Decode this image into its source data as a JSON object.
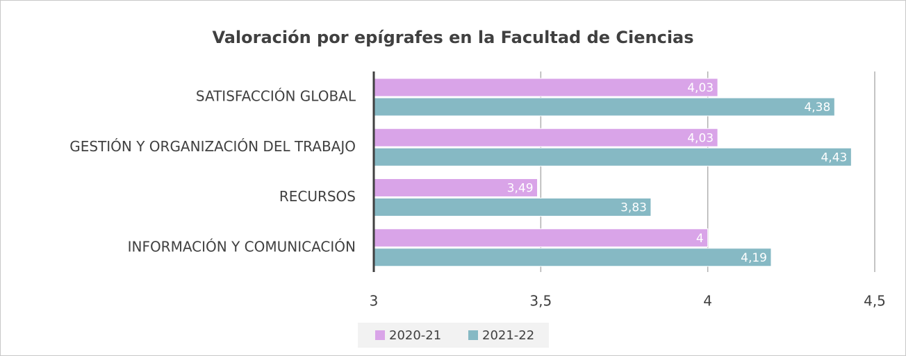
{
  "chart_data": {
    "type": "hbar",
    "title": "Valoración por epígrafes en la Facultad de Ciencias",
    "categories": [
      "SATISFACCIÓN GLOBAL",
      "GESTIÓN Y ORGANIZACIÓN DEL TRABAJO",
      "RECURSOS",
      "INFORMACIÓN Y COMUNICACIÓN"
    ],
    "series": [
      {
        "name": "2020-21",
        "color": "#d9a4e8",
        "values": [
          4.03,
          4.03,
          3.49,
          4
        ],
        "value_labels": [
          "4,03",
          "4,03",
          "3,49",
          "4"
        ]
      },
      {
        "name": "2021-22",
        "color": "#86b9c4",
        "values": [
          4.38,
          4.43,
          3.83,
          4.19
        ],
        "value_labels": [
          "4,38",
          "4,43",
          "3,83",
          "4,19"
        ]
      }
    ],
    "xlim": [
      3,
      4.5
    ],
    "xticks": [
      3,
      {
        "value": 3.5,
        "label": "3,5"
      },
      4,
      {
        "value": 4.5,
        "label": "4,5"
      }
    ],
    "grid": true,
    "legend": "bottom"
  }
}
